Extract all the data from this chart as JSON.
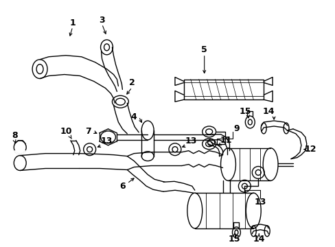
{
  "bg_color": "#ffffff",
  "lc": "#000000",
  "lw": 1.0,
  "fig_width": 4.89,
  "fig_height": 3.6,
  "dpi": 100
}
